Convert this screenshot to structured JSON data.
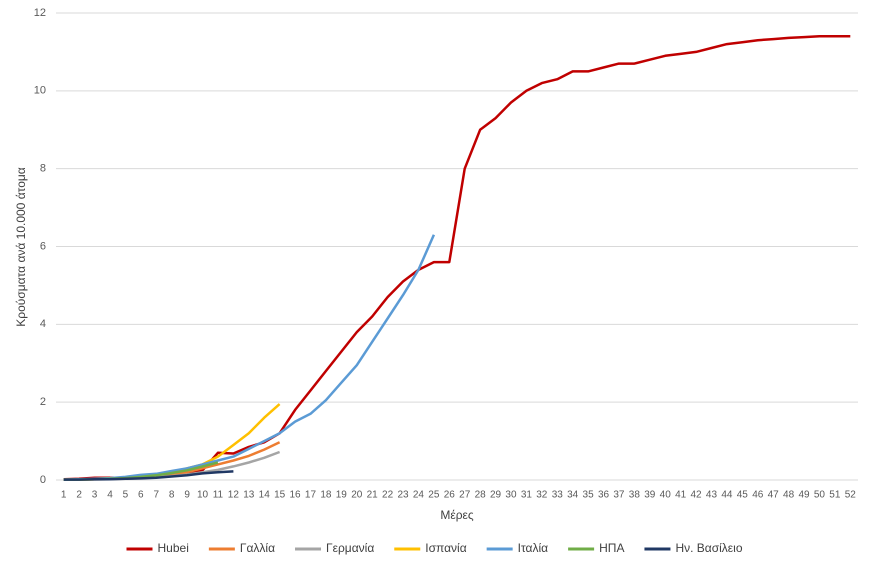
{
  "chart_data": {
    "type": "line",
    "y_label": "Κρούσματα ανά 10.000 άτομα",
    "x_label": "Μέρες",
    "categories": [
      "1",
      "2",
      "3",
      "4",
      "5",
      "6",
      "7",
      "8",
      "9",
      "10",
      "11",
      "12",
      "13",
      "14",
      "15",
      "16",
      "17",
      "18",
      "19",
      "20",
      "21",
      "22",
      "23",
      "24",
      "25",
      "26",
      "27",
      "28",
      "29",
      "30",
      "31",
      "32",
      "33",
      "34",
      "35",
      "36",
      "37",
      "38",
      "39",
      "40",
      "41",
      "42",
      "43",
      "44",
      "45",
      "46",
      "47",
      "48",
      "49",
      "50",
      "51",
      "52"
    ],
    "ylim": [
      0,
      12
    ],
    "yticks": [
      0,
      2,
      4,
      6,
      8,
      10,
      12
    ],
    "grid": true,
    "legend": "bottom",
    "series": [
      {
        "name": "Hubei",
        "color": "#c00000",
        "values": [
          0.02,
          0.03,
          0.06,
          0.06,
          0.06,
          0.08,
          0.1,
          0.15,
          0.2,
          0.25,
          0.7,
          0.68,
          0.85,
          0.97,
          1.2,
          1.8,
          2.3,
          2.8,
          3.3,
          3.8,
          4.2,
          4.7,
          5.1,
          5.4,
          5.6,
          5.6,
          8.0,
          9.0,
          9.3,
          9.7,
          10.0,
          10.2,
          10.3,
          10.5,
          10.5,
          10.6,
          10.7,
          10.7,
          10.8,
          10.9,
          10.95,
          11.0,
          11.1,
          11.2,
          11.25,
          11.3,
          11.33,
          11.36,
          11.38,
          11.4,
          11.4,
          11.4
        ]
      },
      {
        "name": "Γαλλία",
        "color": "#ed7d31",
        "values": [
          0.01,
          0.01,
          0.02,
          0.03,
          0.04,
          0.06,
          0.08,
          0.12,
          0.2,
          0.3,
          0.4,
          0.5,
          0.62,
          0.78,
          0.97,
          null,
          null,
          null,
          null,
          null,
          null,
          null,
          null,
          null,
          null,
          null,
          null,
          null,
          null,
          null,
          null,
          null,
          null,
          null,
          null,
          null,
          null,
          null,
          null,
          null,
          null,
          null,
          null,
          null,
          null,
          null,
          null,
          null,
          null,
          null,
          null,
          null
        ]
      },
      {
        "name": "Γερμανία",
        "color": "#a5a5a5",
        "values": [
          0.01,
          0.01,
          0.01,
          0.02,
          0.03,
          0.05,
          0.07,
          0.1,
          0.14,
          0.2,
          0.26,
          0.35,
          0.45,
          0.57,
          0.72,
          null,
          null,
          null,
          null,
          null,
          null,
          null,
          null,
          null,
          null,
          null,
          null,
          null,
          null,
          null,
          null,
          null,
          null,
          null,
          null,
          null,
          null,
          null,
          null,
          null,
          null,
          null,
          null,
          null,
          null,
          null,
          null,
          null,
          null,
          null,
          null,
          null
        ]
      },
      {
        "name": "Ισπανία",
        "color": "#ffc000",
        "values": [
          0.01,
          0.01,
          0.02,
          0.03,
          0.05,
          0.08,
          0.12,
          0.2,
          0.3,
          0.4,
          0.6,
          0.9,
          1.2,
          1.6,
          1.95,
          null,
          null,
          null,
          null,
          null,
          null,
          null,
          null,
          null,
          null,
          null,
          null,
          null,
          null,
          null,
          null,
          null,
          null,
          null,
          null,
          null,
          null,
          null,
          null,
          null,
          null,
          null,
          null,
          null,
          null,
          null,
          null,
          null,
          null,
          null,
          null,
          null
        ]
      },
      {
        "name": "Ιταλία",
        "color": "#5b9bd5",
        "values": [
          0.01,
          0.02,
          0.03,
          0.05,
          0.08,
          0.13,
          0.16,
          0.23,
          0.3,
          0.4,
          0.5,
          0.6,
          0.8,
          1.0,
          1.2,
          1.5,
          1.7,
          2.05,
          2.5,
          2.95,
          3.55,
          4.15,
          4.75,
          5.4,
          6.3,
          null,
          null,
          null,
          null,
          null,
          null,
          null,
          null,
          null,
          null,
          null,
          null,
          null,
          null,
          null,
          null,
          null,
          null,
          null,
          null,
          null,
          null,
          null,
          null,
          null,
          null,
          null
        ]
      },
      {
        "name": "ΗΠΑ",
        "color": "#70ad47",
        "values": [
          0.01,
          0.01,
          0.02,
          0.03,
          0.05,
          0.08,
          0.12,
          0.18,
          0.25,
          0.35,
          0.45,
          null,
          null,
          null,
          null,
          null,
          null,
          null,
          null,
          null,
          null,
          null,
          null,
          null,
          null,
          null,
          null,
          null,
          null,
          null,
          null,
          null,
          null,
          null,
          null,
          null,
          null,
          null,
          null,
          null,
          null,
          null,
          null,
          null,
          null,
          null,
          null,
          null,
          null,
          null,
          null,
          null
        ]
      },
      {
        "name": "Ην. Βασίλειο",
        "color": "#203864",
        "values": [
          0.01,
          0.01,
          0.02,
          0.02,
          0.03,
          0.04,
          0.06,
          0.09,
          0.12,
          0.17,
          0.2,
          0.22,
          null,
          null,
          null,
          null,
          null,
          null,
          null,
          null,
          null,
          null,
          null,
          null,
          null,
          null,
          null,
          null,
          null,
          null,
          null,
          null,
          null,
          null,
          null,
          null,
          null,
          null,
          null,
          null,
          null,
          null,
          null,
          null,
          null,
          null,
          null,
          null,
          null,
          null,
          null,
          null
        ]
      }
    ]
  }
}
